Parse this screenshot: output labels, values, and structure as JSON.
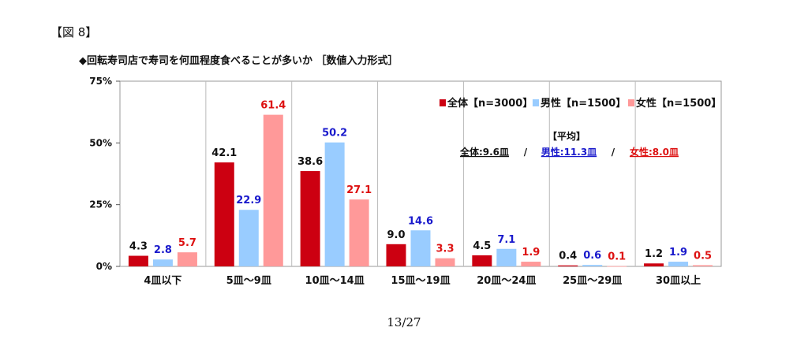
{
  "figure_label": "【図 8】",
  "page_number": "13/27",
  "chart_data": {
    "type": "bar",
    "title": "◆回転寿司店で寿司を何皿程度食べることが多いか ［数値入力形式］",
    "categories": [
      "4皿以下",
      "5皿～9皿",
      "10皿～14皿",
      "15皿～19皿",
      "20皿～24皿",
      "25皿～29皿",
      "30皿以上"
    ],
    "series": [
      {
        "name": "全体【n=3000】",
        "color": "#cc0011",
        "label_color": "#111111",
        "values": [
          4.3,
          42.1,
          38.6,
          9.0,
          4.5,
          0.4,
          1.2
        ]
      },
      {
        "name": "男性【n=1500】",
        "color": "#99ccff",
        "label_color": "#1a1acc",
        "values": [
          2.8,
          22.9,
          50.2,
          14.6,
          7.1,
          0.6,
          1.9
        ]
      },
      {
        "name": "女性【n=1500】",
        "color": "#ff9999",
        "label_color": "#dd1111",
        "values": [
          5.7,
          61.4,
          27.1,
          3.3,
          1.9,
          0.1,
          0.5
        ]
      }
    ],
    "y_ticks": [
      "0%",
      "25%",
      "50%",
      "75%"
    ],
    "ylim": [
      0,
      75
    ],
    "legend_position": "top-right",
    "average": {
      "heading": "【平均】",
      "overall": "全体:9.6皿",
      "sep1": "/",
      "male": "男性:11.3皿",
      "sep2": "/",
      "female": "女性:8.0皿"
    }
  }
}
